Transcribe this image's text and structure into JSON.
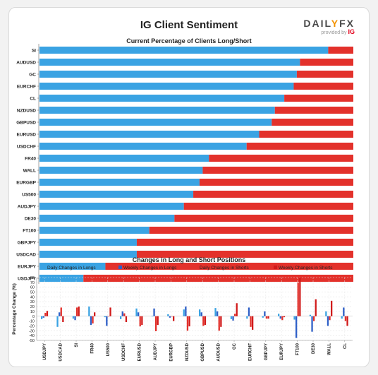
{
  "header": {
    "title": "IG Client Sentiment",
    "logo_brand": "DAILYFX",
    "logo_provided_by": "provided by",
    "logo_ig": "IG"
  },
  "colors": {
    "long": "#3aa3e3",
    "weekly_long": "#2e5fc7",
    "short": "#e3312b",
    "weekly_short": "#d11a1a"
  },
  "chart_data": [
    {
      "type": "bar",
      "orientation": "horizontal",
      "stacked": true,
      "title": "Current Percentage of Clients Long/Short",
      "categories": [
        "SI",
        "AUDUSD",
        "GC",
        "EURCHF",
        "CL",
        "NZDUSD",
        "GBPUSD",
        "EURUSD",
        "USDCHF",
        "FR40",
        "WALL",
        "EURGBP",
        "US500",
        "AUDJPY",
        "DE30",
        "FT100",
        "GBPJPY",
        "USDCAD",
        "EURJPY",
        "USDJPY"
      ],
      "series": [
        {
          "values": [
            92,
            83,
            82,
            81,
            78,
            75,
            74,
            70,
            66,
            54,
            52,
            51,
            49,
            46,
            43,
            35,
            31,
            31,
            21,
            14
          ]
        },
        {
          "values": [
            8,
            17,
            18,
            19,
            22,
            25,
            26,
            30,
            34,
            46,
            48,
            49,
            51,
            54,
            57,
            65,
            69,
            69,
            79,
            86
          ]
        }
      ],
      "xlim": [
        0,
        100
      ]
    },
    {
      "type": "bar",
      "title": "Changes in Long and Short Positions",
      "ylabel": "Percentage Change (%)",
      "categories": [
        "USDJPY",
        "USDCAD",
        "SI",
        "FR40",
        "US500",
        "USDCHF",
        "EURUSD",
        "AUDJPY",
        "EURGBP",
        "NZDUSD",
        "GBPUSD",
        "AUDUSD",
        "GC",
        "EURCHF",
        "GBPJPY",
        "EURJPY",
        "FT100",
        "DE30",
        "WALL",
        "CL"
      ],
      "series": [
        {
          "name": "Daily Changes in Longs",
          "values": [
            -6,
            -22,
            -5,
            20,
            -2,
            -6,
            16,
            1,
            4,
            14,
            14,
            17,
            -6,
            -5,
            -3,
            5,
            -7,
            3,
            10,
            -5
          ]
        },
        {
          "name": "Weekly Changes in Longs",
          "values": [
            -3,
            8,
            -8,
            -18,
            -20,
            10,
            8,
            16,
            -3,
            20,
            8,
            10,
            -9,
            18,
            10,
            -5,
            -45,
            -32,
            -20,
            18
          ]
        },
        {
          "name": "Daily Changes in Shorts",
          "values": [
            7,
            18,
            18,
            -15,
            0,
            6,
            -21,
            -31,
            0,
            -30,
            -20,
            -30,
            5,
            -22,
            -5,
            -8,
            70,
            -10,
            -8,
            -10
          ]
        },
        {
          "name": "Weekly Changes in Shorts",
          "values": [
            11,
            -12,
            20,
            8,
            18,
            -12,
            -18,
            -18,
            -10,
            -21,
            -18,
            -22,
            27,
            -28,
            -5,
            -2,
            80,
            35,
            32,
            -20
          ]
        }
      ],
      "ylim": [
        -50,
        80
      ],
      "yticks": [
        -50,
        -40,
        -30,
        -20,
        -10,
        0,
        10,
        20,
        30,
        40,
        50,
        60,
        70,
        80
      ],
      "legend": "top"
    }
  ]
}
